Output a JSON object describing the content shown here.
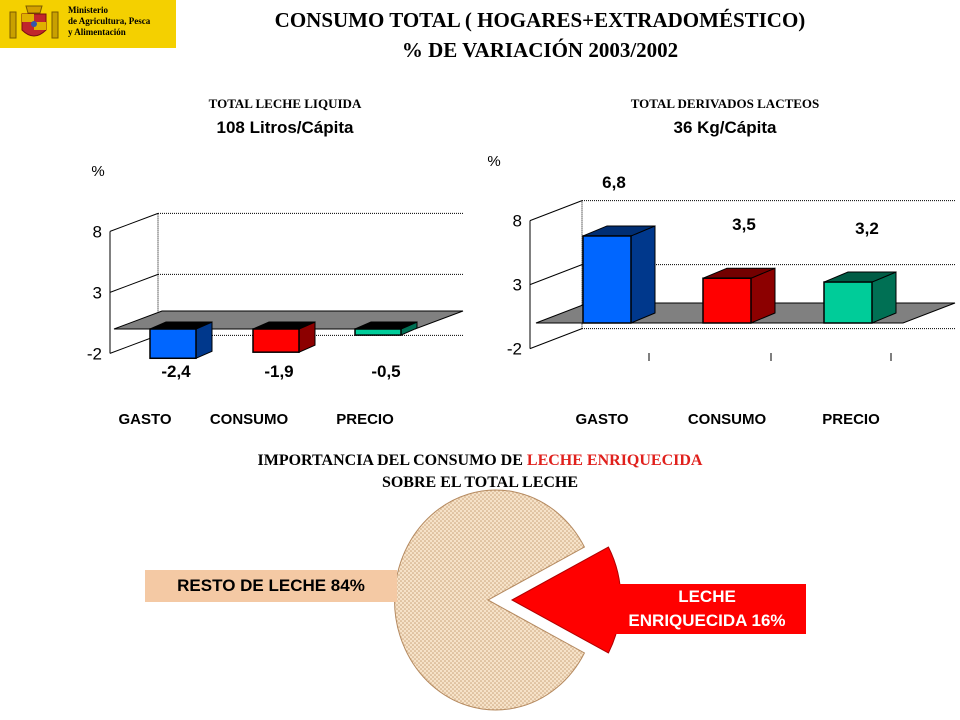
{
  "logo": {
    "lines": [
      "Ministerio",
      "de Agricultura, Pesca",
      "y Alimentación"
    ]
  },
  "title": {
    "line1": "CONSUMO TOTAL ( HOGARES+EXTRADOMÉSTICO)",
    "line2": "% DE VARIACIÓN  2003/2002"
  },
  "chart_data": [
    {
      "type": "bar",
      "title": "TOTAL LECHE LIQUIDA",
      "subtitle": "108 Litros/Cápita",
      "ylabel": "%",
      "yticks": [
        "8",
        "3",
        "-2"
      ],
      "ylim": [
        -2,
        8
      ],
      "categories": [
        "GASTO",
        "CONSUMO",
        "PRECIO"
      ],
      "values": [
        -2.4,
        -1.9,
        -0.5
      ],
      "labels": [
        "-2,4",
        "-1,9",
        "-0,5"
      ],
      "colors": [
        "#0066ff",
        "#ff0000",
        "#00cc99"
      ]
    },
    {
      "type": "bar",
      "title": "TOTAL DERIVADOS LACTEOS",
      "subtitle": "36 Kg/Cápita",
      "ylabel": "%",
      "yticks": [
        "8",
        "3",
        "-2"
      ],
      "ylim": [
        -2,
        8
      ],
      "categories": [
        "GASTO",
        "CONSUMO",
        "PRECIO"
      ],
      "values": [
        6.8,
        3.5,
        3.2
      ],
      "labels": [
        "6,8",
        "3,5",
        "3,2"
      ],
      "colors": [
        "#0066ff",
        "#ff0000",
        "#00cc99"
      ]
    },
    {
      "type": "pie",
      "title_prefix": "IMPORTANCIA DEL CONSUMO DE ",
      "title_highlight": "LECHE ENRIQUECIDA",
      "title_line2": "SOBRE EL TOTAL LECHE",
      "slices": [
        {
          "name": "RESTO DE LECHE",
          "value": 84,
          "label": "RESTO DE LECHE 84%",
          "color": "#f4c9a4"
        },
        {
          "name": "LECHE ENRIQUECIDA",
          "value": 16,
          "label_line1": "LECHE",
          "label_line2": "ENRIQUECIDA 16%",
          "color": "#ff0000"
        }
      ]
    }
  ]
}
